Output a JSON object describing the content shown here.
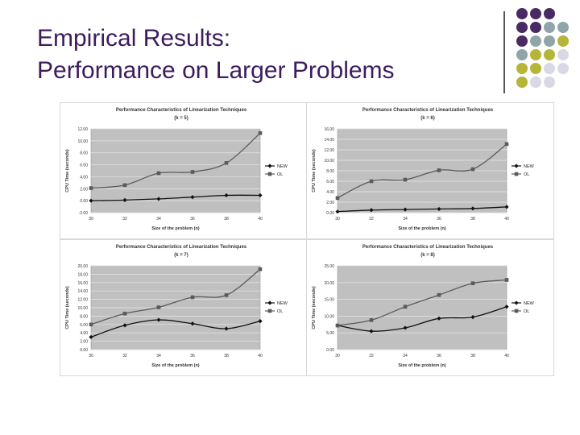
{
  "slide": {
    "title_line1": "Empirical Results:",
    "title_line2": "Performance on Larger Problems"
  },
  "colors": {
    "title": "#3d1c5c",
    "dot_purple": "#4a2a63",
    "dot_teal": "#8fa5a8",
    "dot_olive": "#b5b53a",
    "dot_lavender": "#d9d9e6",
    "plot_background": "#c0c0c0",
    "series_new": "#111111",
    "series_ol": "#5a5a5a"
  },
  "chart_data": [
    {
      "type": "line",
      "title": "Performance Characteristics of Linearization Techniques",
      "subtitle": "(k = 5)",
      "xlabel": "Size of the problem (n)",
      "ylabel": "CPU Time (seconds)",
      "categories": [
        "30",
        "32",
        "34",
        "36",
        "38",
        "40"
      ],
      "yticks": [
        "-2.00",
        "0.00",
        "2.00",
        "4.00",
        "6.00",
        "8.00",
        "10.00",
        "12.00"
      ],
      "ylim": [
        -2,
        12
      ],
      "grid": true,
      "legend": "right",
      "series": [
        {
          "name": "NEW",
          "values": [
            0.0,
            0.1,
            0.3,
            0.6,
            0.9,
            0.9
          ]
        },
        {
          "name": "OL",
          "values": [
            2.1,
            2.6,
            4.6,
            4.8,
            6.3,
            11.3
          ]
        }
      ]
    },
    {
      "type": "line",
      "title": "Performance Characteristics of Linearization Techniques",
      "subtitle": "(k = 6)",
      "xlabel": "Size of the problem (n)",
      "ylabel": "CPU Time (seconds)",
      "categories": [
        "30",
        "32",
        "34",
        "36",
        "38",
        "40"
      ],
      "yticks": [
        "0.00",
        "2.00",
        "4.00",
        "6.00",
        "8.00",
        "10.00",
        "12.00",
        "14.00",
        "16.00"
      ],
      "ylim": [
        0,
        16
      ],
      "grid": true,
      "legend": "right",
      "series": [
        {
          "name": "NEW",
          "values": [
            0.2,
            0.5,
            0.6,
            0.7,
            0.8,
            1.1
          ]
        },
        {
          "name": "OL",
          "values": [
            2.8,
            6.0,
            6.3,
            8.1,
            8.3,
            13.1
          ]
        }
      ]
    },
    {
      "type": "line",
      "title": "Performance Characteristics of Linearization Techniques",
      "subtitle": "(k = 7)",
      "xlabel": "Size of the problem (n)",
      "ylabel": "CPU Time (seconds)",
      "categories": [
        "30",
        "32",
        "34",
        "36",
        "38",
        "40"
      ],
      "yticks": [
        "0.00",
        "2.00",
        "4.00",
        "6.00",
        "8.00",
        "10.00",
        "12.00",
        "14.00",
        "16.00",
        "18.00",
        "20.00"
      ],
      "ylim": [
        0,
        20
      ],
      "grid": true,
      "legend": "right",
      "series": [
        {
          "name": "NEW",
          "values": [
            3.0,
            5.8,
            7.1,
            6.2,
            5.0,
            6.8
          ]
        },
        {
          "name": "OL",
          "values": [
            6.0,
            8.6,
            10.1,
            12.5,
            13.0,
            19.2
          ]
        }
      ]
    },
    {
      "type": "line",
      "title": "Performance Characteristics of Linearization Techniques",
      "subtitle": "(k = 8)",
      "xlabel": "Size of the problem (n)",
      "ylabel": "CPU Time (seconds)",
      "categories": [
        "30",
        "32",
        "34",
        "36",
        "38",
        "40"
      ],
      "yticks": [
        "0.00",
        "5.00",
        "10.00",
        "15.00",
        "20.00",
        "25.00"
      ],
      "ylim": [
        0,
        25
      ],
      "grid": true,
      "legend": "right",
      "series": [
        {
          "name": "NEW",
          "values": [
            7.2,
            5.5,
            6.5,
            9.3,
            9.7,
            12.8
          ]
        },
        {
          "name": "OL",
          "values": [
            7.2,
            8.8,
            12.8,
            16.3,
            19.8,
            20.8
          ]
        }
      ]
    }
  ]
}
